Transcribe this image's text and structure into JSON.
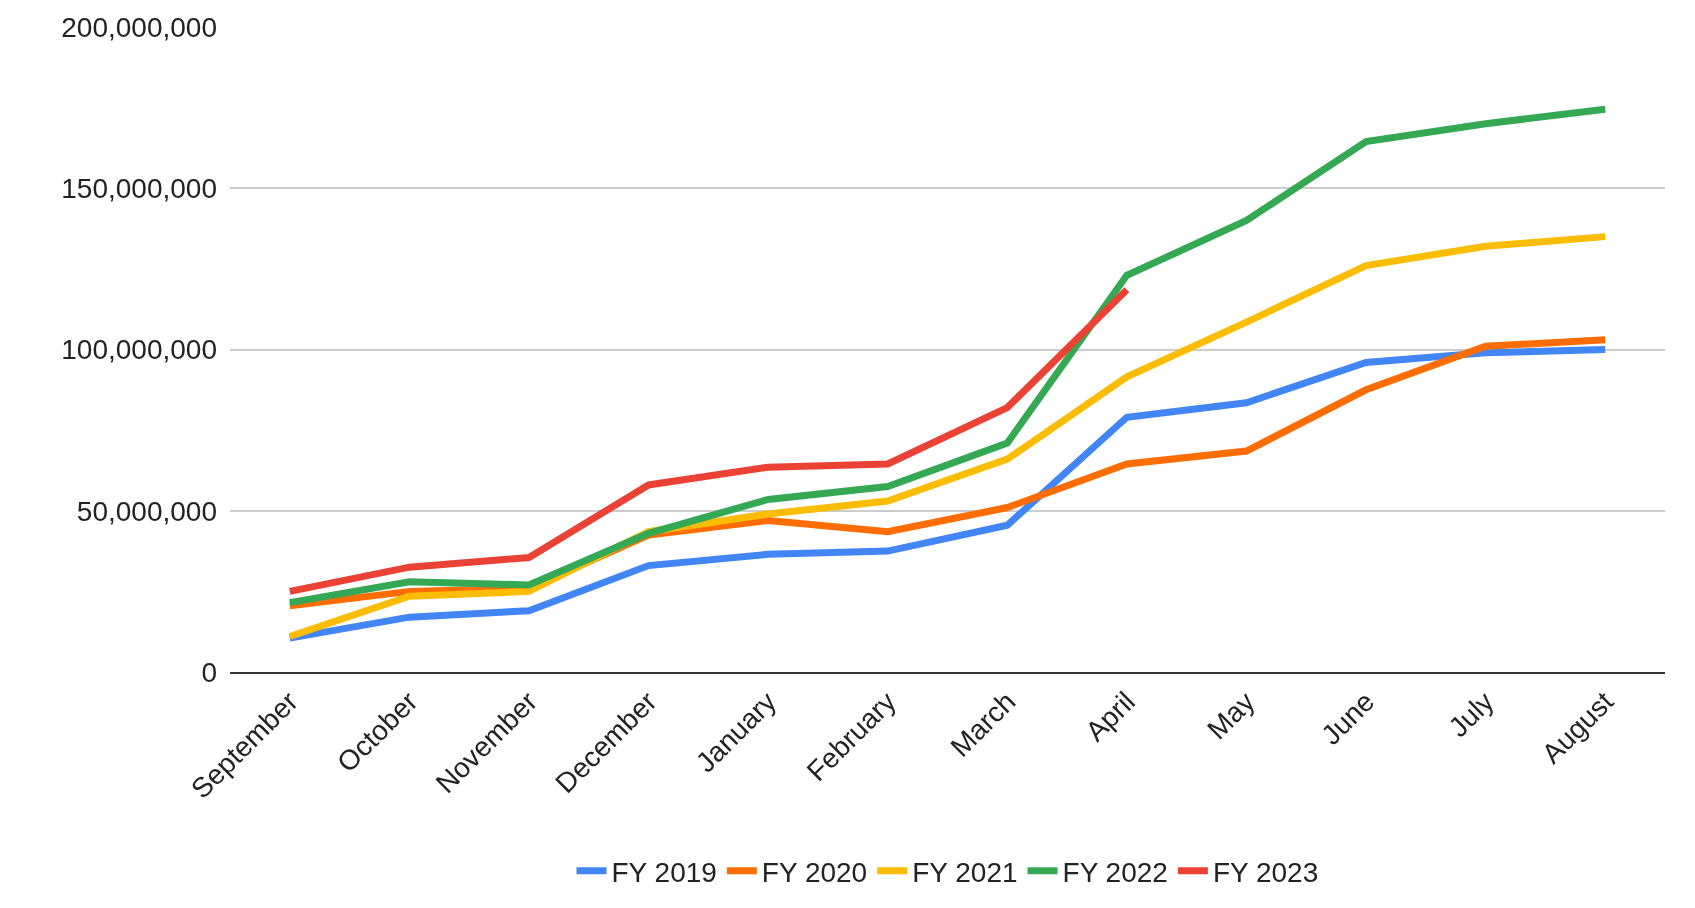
{
  "chart_data": {
    "type": "line",
    "categories": [
      "September",
      "October",
      "November",
      "December",
      "January",
      "February",
      "March",
      "April",
      "May",
      "June",
      "July",
      "August"
    ],
    "series": [
      {
        "name": "FY 2019",
        "color": "#4285f4",
        "values": [
          10500000,
          17000000,
          19000000,
          33000000,
          36500000,
          37500000,
          45500000,
          79000000,
          83500000,
          96000000,
          99000000,
          100000000
        ]
      },
      {
        "name": "FY 2020",
        "color": "#ff6d01",
        "values": [
          20500000,
          25000000,
          26000000,
          42500000,
          47000000,
          43500000,
          51000000,
          64500000,
          68500000,
          87500000,
          101000000,
          103000000
        ]
      },
      {
        "name": "FY 2021",
        "color": "#fbbc04",
        "values": [
          11000000,
          23500000,
          25000000,
          43500000,
          49000000,
          53000000,
          66000000,
          91500000,
          108500000,
          126000000,
          132000000,
          135000000
        ]
      },
      {
        "name": "FY 2022",
        "color": "#34a853",
        "values": [
          21500000,
          28000000,
          27000000,
          43000000,
          53500000,
          57500000,
          71000000,
          123000000,
          140000000,
          164500000,
          170000000,
          174500000
        ]
      },
      {
        "name": "FY 2023",
        "color": "#ea4335",
        "values": [
          25000000,
          32500000,
          35500000,
          58000000,
          63500000,
          64500000,
          82000000,
          118500000,
          null,
          null,
          null,
          null
        ]
      }
    ],
    "ylim": [
      0,
      200000000
    ],
    "yticks": [
      {
        "value": 0,
        "label": "0"
      },
      {
        "value": 50000000,
        "label": "50,000,000"
      },
      {
        "value": 100000000,
        "label": "100,000,000"
      },
      {
        "value": 150000000,
        "label": "150,000,000"
      },
      {
        "value": 200000000,
        "label": "200,000,000"
      }
    ],
    "grid": "y",
    "legend": "bottom",
    "marker": "none",
    "line_style": "solid"
  }
}
